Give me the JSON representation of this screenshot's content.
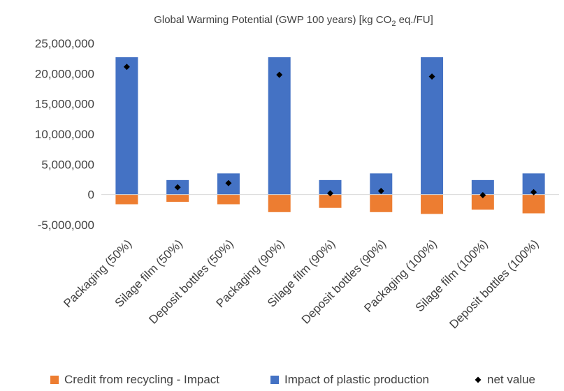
{
  "chart_data": {
    "type": "bar",
    "stacked": true,
    "title_main": "Global Warming Potential (GWP 100 years) [kg CO",
    "title_sub": "2",
    "title_end": " eq./FU]",
    "categories": [
      "Packaging (50%)",
      "Silage film (50%)",
      "Deposit bottles (50%)",
      "Packaging (90%)",
      "Silage film (90%)",
      "Deposit bottles (90%)",
      "Packaging (100%)",
      "Silage film (100%)",
      "Deposit bottles (100%)"
    ],
    "series": [
      {
        "name": "Credit from recycling - Impact",
        "color": "#ED7D31",
        "values": [
          -1600000,
          -1200000,
          -1600000,
          -2900000,
          -2200000,
          -2900000,
          -3200000,
          -2500000,
          -3100000
        ]
      },
      {
        "name": "Impact of plastic production",
        "color": "#4472C4",
        "values": [
          22700000,
          2400000,
          3500000,
          22700000,
          2400000,
          3500000,
          22700000,
          2400000,
          3500000
        ]
      },
      {
        "name": "net value",
        "type": "marker",
        "marker": "diamond",
        "color": "#000000",
        "values": [
          21100000,
          1200000,
          1900000,
          19800000,
          200000,
          600000,
          19500000,
          -100000,
          400000
        ]
      }
    ],
    "yticks": [
      {
        "value": 25000000,
        "label": "25,000,000"
      },
      {
        "value": 20000000,
        "label": "20,000,000"
      },
      {
        "value": 15000000,
        "label": "15,000,000"
      },
      {
        "value": 10000000,
        "label": "10,000,000"
      },
      {
        "value": 5000000,
        "label": "5,000,000"
      },
      {
        "value": 0,
        "label": "0"
      },
      {
        "value": -5000000,
        "label": "-5,000,000"
      }
    ],
    "ylim": [
      -5000000,
      25000000
    ],
    "grid": false,
    "legend_position": "bottom"
  }
}
